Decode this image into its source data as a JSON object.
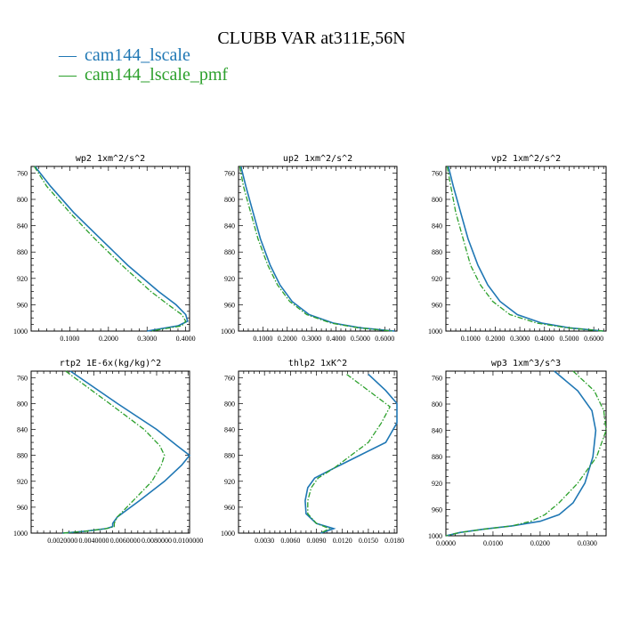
{
  "figure": {
    "title": "CLUBB VAR at311E,56N",
    "colors": {
      "cam144_lscale": "#1f77b4",
      "cam144_lscale_pmf": "#2ca02c"
    }
  },
  "legend": {
    "items": [
      {
        "mark": "—",
        "label": "cam144_lscale",
        "color": "#1f77b4"
      },
      {
        "mark": "—",
        "label": "cam144_lscale_pmf",
        "color": "#2ca02c"
      }
    ]
  },
  "chart_data": [
    {
      "type": "line",
      "title": "wp2  1xm^2/s^2",
      "xlim": [
        0.0,
        0.41
      ],
      "ylim": [
        1000,
        750
      ],
      "y_axis": "pressure (inverted)",
      "xticks": [
        0.1,
        0.2,
        0.3,
        0.4
      ],
      "xtick_labels": [
        "0.1000",
        "0.2000",
        "0.3000",
        "0.4000"
      ],
      "yticks": [
        760,
        800,
        840,
        880,
        920,
        960,
        1000
      ],
      "series": [
        {
          "name": "cam144_lscale",
          "y": [
            750,
            780,
            820,
            860,
            900,
            940,
            960,
            975,
            985,
            992,
            1000
          ],
          "x": [
            0.01,
            0.05,
            0.11,
            0.18,
            0.25,
            0.33,
            0.375,
            0.4,
            0.405,
            0.38,
            0.3
          ]
        },
        {
          "name": "cam144_lscale_pmf",
          "y": [
            750,
            780,
            820,
            860,
            900,
            940,
            960,
            975,
            985,
            992,
            1000
          ],
          "x": [
            0.008,
            0.04,
            0.1,
            0.165,
            0.235,
            0.31,
            0.355,
            0.39,
            0.4,
            0.39,
            0.31
          ]
        }
      ]
    },
    {
      "type": "line",
      "title": "up2  1xm^2/s^2",
      "xlim": [
        0.0,
        0.65
      ],
      "ylim": [
        1000,
        750
      ],
      "y_axis": "pressure (inverted)",
      "xticks": [
        0.1,
        0.2,
        0.3,
        0.4,
        0.5,
        0.6
      ],
      "xtick_labels": [
        "0.1000",
        "0.2000",
        "0.3000",
        "0.4000",
        "0.5000",
        "0.6000"
      ],
      "yticks": [
        760,
        800,
        840,
        880,
        920,
        960,
        1000
      ],
      "series": [
        {
          "name": "cam144_lscale",
          "y": [
            750,
            780,
            820,
            860,
            900,
            930,
            955,
            975,
            988,
            995,
            1000
          ],
          "x": [
            0.01,
            0.03,
            0.06,
            0.09,
            0.13,
            0.17,
            0.22,
            0.29,
            0.39,
            0.5,
            0.64
          ]
        },
        {
          "name": "cam144_lscale_pmf",
          "y": [
            750,
            780,
            820,
            860,
            900,
            930,
            955,
            975,
            988,
            995,
            1000
          ],
          "x": [
            0.005,
            0.02,
            0.05,
            0.08,
            0.12,
            0.16,
            0.21,
            0.28,
            0.38,
            0.49,
            0.63
          ]
        }
      ]
    },
    {
      "type": "line",
      "title": "vp2  1xm^2/s^2",
      "xlim": [
        0.0,
        0.65
      ],
      "ylim": [
        1000,
        750
      ],
      "y_axis": "pressure (inverted)",
      "xticks": [
        0.1,
        0.2,
        0.3,
        0.4,
        0.5,
        0.6
      ],
      "xtick_labels": [
        "0.1000",
        "0.2000",
        "0.3000",
        "0.4000",
        "0.5000",
        "0.6000"
      ],
      "yticks": [
        760,
        800,
        840,
        880,
        920,
        960,
        1000
      ],
      "series": [
        {
          "name": "cam144_lscale",
          "y": [
            750,
            780,
            820,
            860,
            900,
            930,
            955,
            975,
            988,
            995,
            1000
          ],
          "x": [
            0.01,
            0.03,
            0.06,
            0.09,
            0.13,
            0.17,
            0.22,
            0.29,
            0.39,
            0.5,
            0.64
          ]
        },
        {
          "name": "cam144_lscale_pmf",
          "y": [
            750,
            780,
            820,
            860,
            900,
            930,
            955,
            975,
            988,
            995,
            1000
          ],
          "x": [
            0.005,
            0.02,
            0.04,
            0.07,
            0.1,
            0.14,
            0.19,
            0.26,
            0.37,
            0.49,
            0.64
          ]
        }
      ]
    },
    {
      "type": "line",
      "title": "rtp2  1E-6x(kg/kg)^2",
      "xlim": [
        0.0,
        0.0101
      ],
      "ylim": [
        1000,
        750
      ],
      "y_axis": "pressure (inverted)",
      "xticks": [
        0.002,
        0.004,
        0.006,
        0.008,
        0.01
      ],
      "xtick_labels": [
        "0.0020000",
        "0.0040000",
        "0.0060000",
        "0.0080000",
        "0.0100000"
      ],
      "yticks": [
        760,
        800,
        840,
        880,
        920,
        960,
        1000
      ],
      "series": [
        {
          "name": "cam144_lscale",
          "y": [
            750,
            800,
            840,
            865,
            880,
            895,
            920,
            950,
            975,
            985,
            990,
            993,
            997,
            1000
          ],
          "x": [
            0.0025,
            0.0055,
            0.008,
            0.0093,
            0.0101,
            0.0096,
            0.0085,
            0.0069,
            0.0055,
            0.0052,
            0.0052,
            0.0048,
            0.0035,
            0.002
          ]
        },
        {
          "name": "cam144_lscale_pmf",
          "y": [
            750,
            800,
            840,
            865,
            880,
            895,
            920,
            950,
            975,
            985,
            990,
            993,
            997,
            1000
          ],
          "x": [
            0.0022,
            0.005,
            0.0072,
            0.0082,
            0.0085,
            0.0083,
            0.0077,
            0.0065,
            0.0055,
            0.0053,
            0.0053,
            0.0048,
            0.0035,
            0.002
          ]
        }
      ]
    },
    {
      "type": "line",
      "title": "thlp2  1xK^2",
      "xlim": [
        0.0,
        0.0183
      ],
      "ylim": [
        1000,
        750
      ],
      "y_axis": "pressure (inverted)",
      "xticks": [
        0.003,
        0.006,
        0.009,
        0.012,
        0.015,
        0.018
      ],
      "xtick_labels": [
        "0.0030",
        "0.0060",
        "0.0090",
        "0.0120",
        "0.0150",
        "0.0180"
      ],
      "yticks": [
        760,
        800,
        840,
        880,
        920,
        960,
        1000
      ],
      "series": [
        {
          "name": "cam144_lscale",
          "y": [
            755,
            780,
            800,
            830,
            860,
            880,
            900,
            915,
            930,
            950,
            970,
            985,
            993,
            1000
          ],
          "x": [
            0.015,
            0.017,
            0.0183,
            0.0183,
            0.017,
            0.014,
            0.011,
            0.0088,
            0.008,
            0.0077,
            0.0078,
            0.009,
            0.011,
            0.0095
          ]
        },
        {
          "name": "cam144_lscale_pmf",
          "y": [
            755,
            780,
            805,
            830,
            860,
            880,
            900,
            915,
            930,
            950,
            970,
            985,
            993,
            1000
          ],
          "x": [
            0.0125,
            0.015,
            0.0175,
            0.0165,
            0.015,
            0.013,
            0.011,
            0.0092,
            0.0084,
            0.008,
            0.008,
            0.009,
            0.0105,
            0.0095
          ]
        }
      ]
    },
    {
      "type": "line",
      "title": "wp3  1xm^3/s^3",
      "xlim": [
        0.0,
        0.034
      ],
      "ylim": [
        1000,
        750
      ],
      "y_axis": "pressure (inverted)",
      "xticks": [
        0.0,
        0.01,
        0.02,
        0.03
      ],
      "xtick_labels": [
        "0.0000",
        "0.0100",
        "0.0200",
        "0.0300"
      ],
      "yticks": [
        760,
        800,
        840,
        880,
        920,
        960,
        1000
      ],
      "series": [
        {
          "name": "cam144_lscale",
          "y": [
            750,
            780,
            810,
            840,
            880,
            920,
            950,
            968,
            978,
            985,
            990,
            995,
            1000
          ],
          "x": [
            0.023,
            0.028,
            0.031,
            0.0318,
            0.0312,
            0.0295,
            0.027,
            0.024,
            0.02,
            0.014,
            0.008,
            0.003,
            0.0
          ]
        },
        {
          "name": "cam144_lscale_pmf",
          "y": [
            750,
            780,
            810,
            840,
            880,
            920,
            950,
            968,
            978,
            985,
            990,
            995,
            1000
          ],
          "x": [
            0.027,
            0.0315,
            0.0335,
            0.034,
            0.032,
            0.028,
            0.024,
            0.021,
            0.018,
            0.014,
            0.008,
            0.003,
            0.0
          ]
        }
      ]
    }
  ]
}
